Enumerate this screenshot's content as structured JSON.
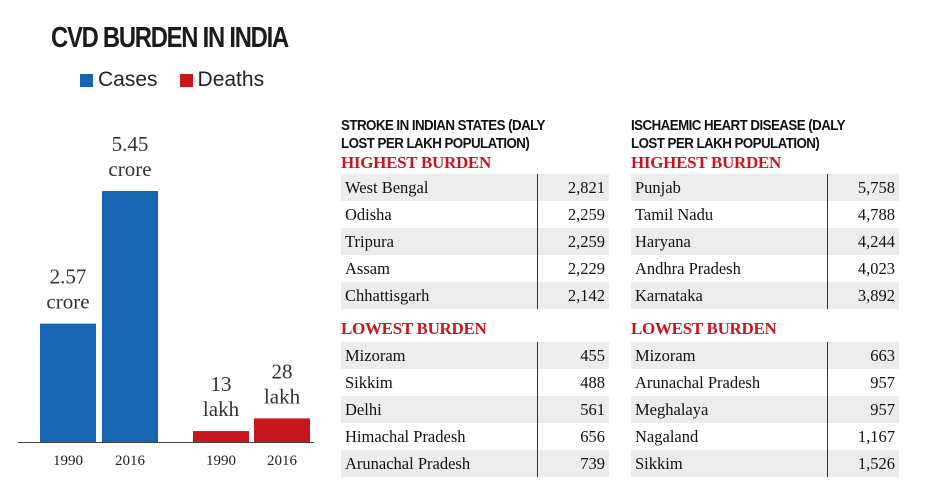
{
  "title": "CVD BURDEN IN INDIA",
  "legend": {
    "cases": "Cases",
    "deaths": "Deaths"
  },
  "colors": {
    "cases": "#1565b0",
    "deaths": "#c8161d"
  },
  "chart_data": {
    "type": "bar",
    "title": "CVD BURDEN IN INDIA",
    "series": [
      {
        "name": "Cases",
        "color": "#1565b0",
        "categories": [
          "1990",
          "2016"
        ],
        "values": [
          2.57,
          5.45
        ],
        "unit": "crore",
        "labels": [
          "2.57 crore",
          "5.45 crore"
        ]
      },
      {
        "name": "Deaths",
        "color": "#c8161d",
        "categories": [
          "1990",
          "2016"
        ],
        "values": [
          13,
          28
        ],
        "unit": "lakh",
        "labels": [
          "13 lakh",
          "28 lakh"
        ]
      }
    ]
  },
  "stroke": {
    "heading_line1": "STROKE IN INDIAN STATES (DALY",
    "heading_line2": "LOST PER LAKH POPULATION)",
    "highest_label": "HIGHEST BURDEN",
    "highest": [
      {
        "state": "West Bengal",
        "value": "2,821"
      },
      {
        "state": "Odisha",
        "value": "2,259"
      },
      {
        "state": "Tripura",
        "value": "2,259"
      },
      {
        "state": "Assam",
        "value": "2,229"
      },
      {
        "state": "Chhattisgarh",
        "value": "2,142"
      }
    ],
    "lowest_label": "LOWEST BURDEN",
    "lowest": [
      {
        "state": "Mizoram",
        "value": "455"
      },
      {
        "state": "Sikkim",
        "value": "488"
      },
      {
        "state": "Delhi",
        "value": "561"
      },
      {
        "state": "Himachal Pradesh",
        "value": "656"
      },
      {
        "state": "Arunachal Pradesh",
        "value": "739"
      }
    ]
  },
  "ihd": {
    "heading_line1": "ISCHAEMIC HEART DISEASE (DALY",
    "heading_line2": "LOST PER LAKH POPULATION)",
    "highest_label": "HIGHEST BURDEN",
    "highest": [
      {
        "state": "Punjab",
        "value": "5,758"
      },
      {
        "state": "Tamil Nadu",
        "value": "4,788"
      },
      {
        "state": "Haryana",
        "value": "4,244"
      },
      {
        "state": "Andhra Pradesh",
        "value": "4,023"
      },
      {
        "state": "Karnataka",
        "value": "3,892"
      }
    ],
    "lowest_label": "LOWEST BURDEN",
    "lowest": [
      {
        "state": "Mizoram",
        "value": "663"
      },
      {
        "state": "Arunachal Pradesh",
        "value": "957"
      },
      {
        "state": "Meghalaya",
        "value": "957"
      },
      {
        "state": "Nagaland",
        "value": "1,167"
      },
      {
        "state": "Sikkim",
        "value": "1,526"
      }
    ]
  }
}
